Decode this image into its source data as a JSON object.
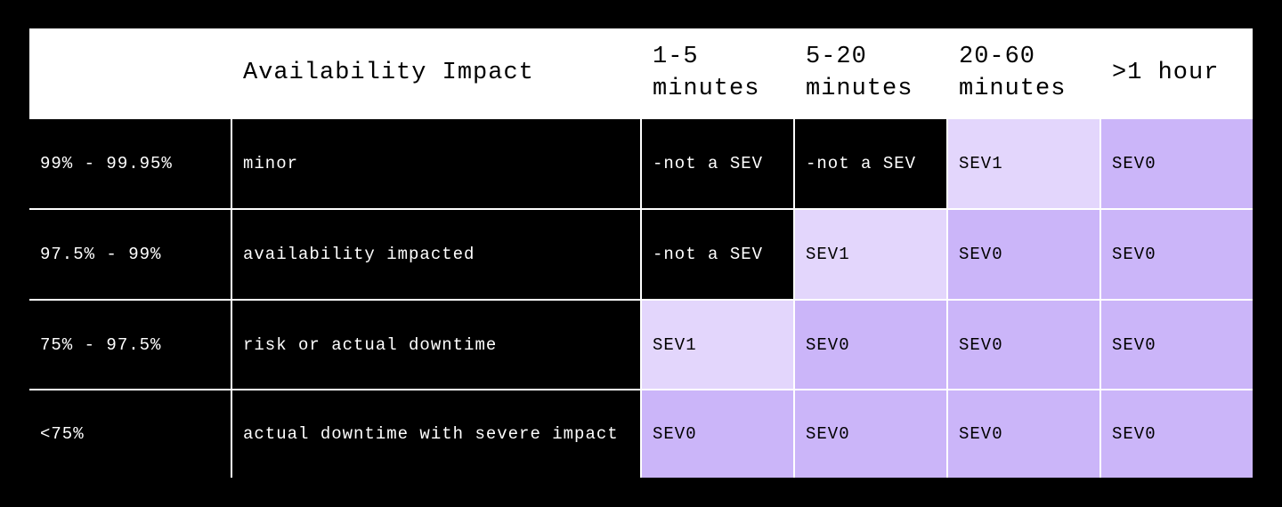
{
  "table": {
    "header": [
      "",
      "Availability Impact",
      "1-5 minutes",
      "5-20 minutes",
      "20-60 minutes",
      ">1 hour"
    ],
    "rows": [
      [
        "99% - 99.95%",
        "minor",
        "-not a SEV",
        "-not a SEV",
        "SEV1",
        "SEV0"
      ],
      [
        "97.5% - 99%",
        "availability impacted",
        "-not a SEV",
        "SEV1",
        "SEV0",
        "SEV0"
      ],
      [
        "75% - 97.5%",
        "risk or actual downtime",
        "SEV1",
        "SEV0",
        "SEV0",
        "SEV0"
      ],
      [
        "<75%",
        "actual downtime with severe impact",
        "SEV0",
        "SEV0",
        "SEV0",
        "SEV0"
      ]
    ],
    "cell_colors": {
      "SEV1": "#e3d6fc",
      "SEV0": "#cbb5f9"
    }
  }
}
